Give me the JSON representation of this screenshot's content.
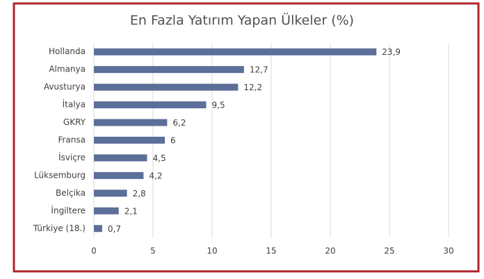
{
  "chart_data": {
    "type": "bar",
    "orientation": "horizontal",
    "title": "En Fazla Yatırım Yapan Ülkeler (%)",
    "categories": [
      "Hollanda",
      "Almanya",
      "Avusturya",
      "İtalya",
      "GKRY",
      "Fransa",
      "İsviçre",
      "Lüksemburg",
      "Belçika",
      "İngiltere",
      "Türkiye (18.)"
    ],
    "values": [
      23.9,
      12.7,
      12.2,
      9.5,
      6.2,
      6,
      4.5,
      4.2,
      2.8,
      2.1,
      0.7
    ],
    "value_labels": [
      "23,9",
      "12,7",
      "12,2",
      "9,5",
      "6,2",
      "6",
      "4,5",
      "4,2",
      "2,8",
      "2,1",
      "0,7"
    ],
    "color": "#5b6f98",
    "xlim": [
      0,
      30
    ],
    "xticks": [
      0,
      5,
      10,
      15,
      20,
      25,
      30
    ],
    "grid": true
  }
}
